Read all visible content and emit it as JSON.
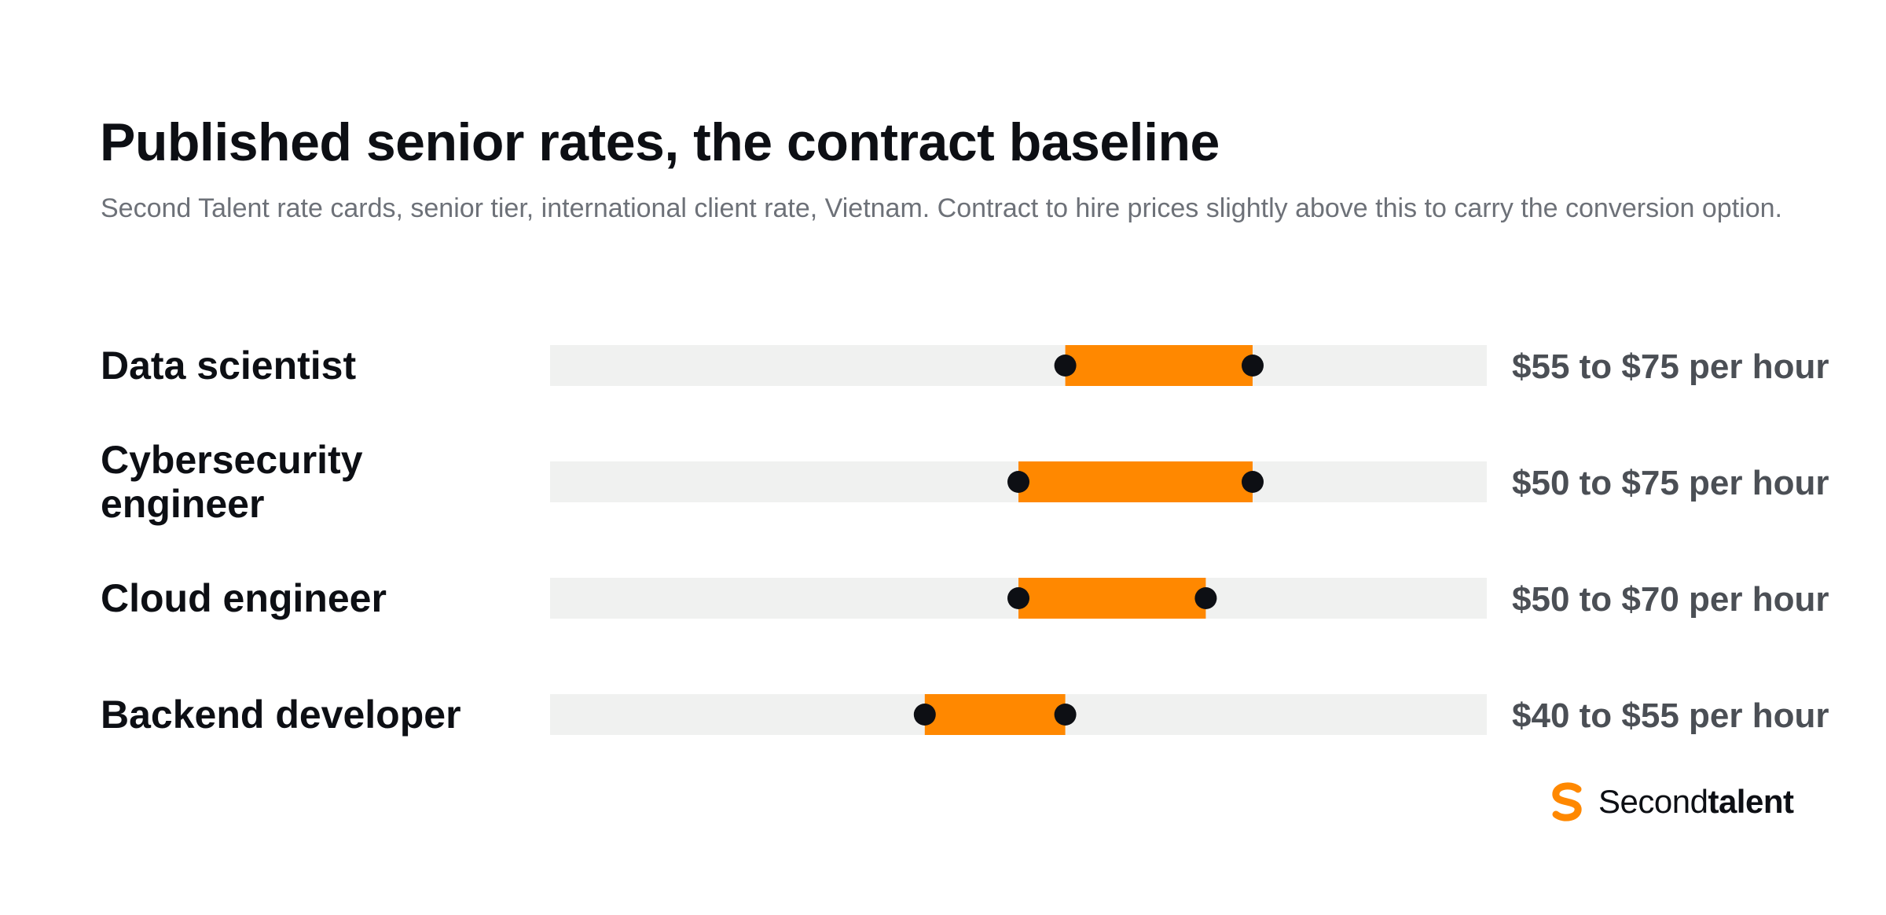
{
  "title": "Published senior rates, the contract baseline",
  "subtitle": "Second Talent rate cards, senior tier, international client rate, Vietnam. Contract to hire prices slightly above this to carry the conversion option.",
  "brand": {
    "name_light": "Second",
    "name_bold": "talent",
    "accent_color": "#FF8800"
  },
  "colors": {
    "range_bar": "#FF8800",
    "track": "#F0F1F0",
    "endpoint": "#0D0F14"
  },
  "chart_data": {
    "type": "range",
    "x_domain": [
      0,
      100
    ],
    "unit": "per hour",
    "rows": [
      {
        "label_lines": [
          "Data scientist"
        ],
        "low": 55,
        "high": 75,
        "value_label": "$55 to $75 per hour"
      },
      {
        "label_lines": [
          "Cybersecurity",
          "engineer"
        ],
        "low": 50,
        "high": 75,
        "value_label": "$50 to $75 per hour"
      },
      {
        "label_lines": [
          "Cloud engineer"
        ],
        "low": 50,
        "high": 70,
        "value_label": "$50 to $70 per hour"
      },
      {
        "label_lines": [
          "Backend developer"
        ],
        "low": 40,
        "high": 55,
        "value_label": "$40 to $55 per hour"
      }
    ]
  }
}
